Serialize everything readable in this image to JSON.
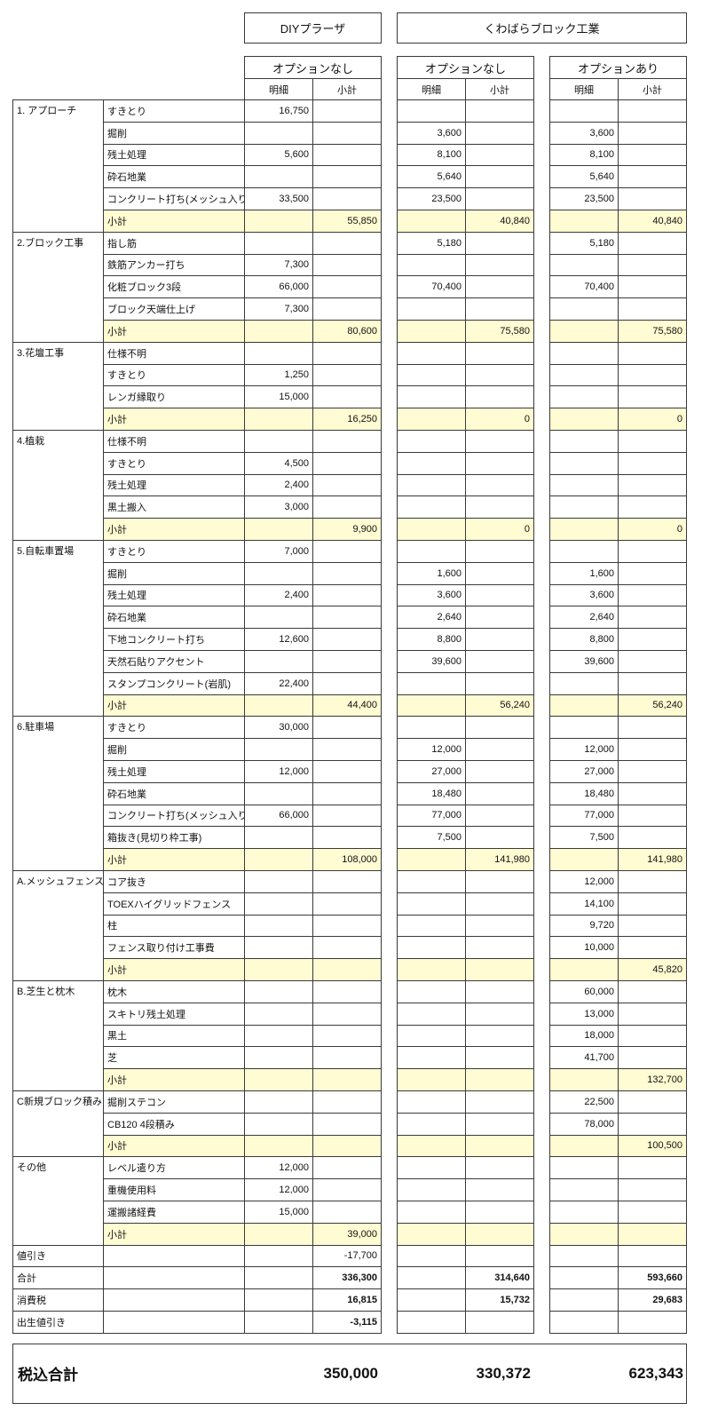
{
  "header": {
    "companies": [
      "DIYプラーザ",
      "くわばらブロック工業"
    ],
    "options": [
      "オプションなし",
      "オプションなし",
      "オプションあり"
    ],
    "col_labels": [
      "明細",
      "小計",
      "明細",
      "小計",
      "明細",
      "小計"
    ]
  },
  "subtotal_color": "#fffbd2",
  "groups": [
    {
      "category": "1. アプローチ",
      "rows": [
        {
          "item": "すきとり",
          "values": [
            "16,750",
            "",
            "",
            "",
            "",
            ""
          ]
        },
        {
          "item": "掘削",
          "values": [
            "",
            "",
            "3,600",
            "",
            "3,600",
            ""
          ]
        },
        {
          "item": "残土処理",
          "values": [
            "5,600",
            "",
            "8,100",
            "",
            "8,100",
            ""
          ]
        },
        {
          "item": "砕石地業",
          "values": [
            "",
            "",
            "5,640",
            "",
            "5,640",
            ""
          ]
        },
        {
          "item": "コンクリート打ち(メッシュ入り)",
          "values": [
            "33,500",
            "",
            "23,500",
            "",
            "23,500",
            ""
          ]
        },
        {
          "item": "小計",
          "subtotal": true,
          "values": [
            "",
            "55,850",
            "",
            "40,840",
            "",
            "40,840"
          ]
        }
      ]
    },
    {
      "category": "2.ブロック工事",
      "rows": [
        {
          "item": "指し筋",
          "values": [
            "",
            "",
            "5,180",
            "",
            "5,180",
            ""
          ]
        },
        {
          "item": "鉄筋アンカー打ち",
          "values": [
            "7,300",
            "",
            "",
            "",
            "",
            ""
          ]
        },
        {
          "item": "化粧ブロック3段",
          "values": [
            "66,000",
            "",
            "70,400",
            "",
            "70,400",
            ""
          ]
        },
        {
          "item": "ブロック天端仕上げ",
          "values": [
            "7,300",
            "",
            "",
            "",
            "",
            ""
          ]
        },
        {
          "item": "小計",
          "subtotal": true,
          "values": [
            "",
            "80,600",
            "",
            "75,580",
            "",
            "75,580"
          ]
        }
      ]
    },
    {
      "category": "3.花壇工事",
      "rows": [
        {
          "item": "仕様不明",
          "values": [
            "",
            "",
            "",
            "",
            "",
            ""
          ]
        },
        {
          "item": "すきとり",
          "values": [
            "1,250",
            "",
            "",
            "",
            "",
            ""
          ]
        },
        {
          "item": "レンガ縁取り",
          "values": [
            "15,000",
            "",
            "",
            "",
            "",
            ""
          ]
        },
        {
          "item": "小計",
          "subtotal": true,
          "values": [
            "",
            "16,250",
            "",
            "0",
            "",
            "0"
          ]
        }
      ]
    },
    {
      "category": "4.植栽",
      "rows": [
        {
          "item": "仕様不明",
          "values": [
            "",
            "",
            "",
            "",
            "",
            ""
          ]
        },
        {
          "item": "すきとり",
          "values": [
            "4,500",
            "",
            "",
            "",
            "",
            ""
          ]
        },
        {
          "item": "残土処理",
          "values": [
            "2,400",
            "",
            "",
            "",
            "",
            ""
          ]
        },
        {
          "item": "黒土搬入",
          "values": [
            "3,000",
            "",
            "",
            "",
            "",
            ""
          ]
        },
        {
          "item": "小計",
          "subtotal": true,
          "values": [
            "",
            "9,900",
            "",
            "0",
            "",
            "0"
          ]
        }
      ]
    },
    {
      "category": "5.自転車置場",
      "rows": [
        {
          "item": "すきとり",
          "values": [
            "7,000",
            "",
            "",
            "",
            "",
            ""
          ]
        },
        {
          "item": "掘削",
          "values": [
            "",
            "",
            "1,600",
            "",
            "1,600",
            ""
          ]
        },
        {
          "item": "残土処理",
          "values": [
            "2,400",
            "",
            "3,600",
            "",
            "3,600",
            ""
          ]
        },
        {
          "item": "砕石地業",
          "values": [
            "",
            "",
            "2,640",
            "",
            "2,640",
            ""
          ]
        },
        {
          "item": "下地コンクリート打ち",
          "values": [
            "12,600",
            "",
            "8,800",
            "",
            "8,800",
            ""
          ]
        },
        {
          "item": "天然石貼りアクセント",
          "values": [
            "",
            "",
            "39,600",
            "",
            "39,600",
            ""
          ]
        },
        {
          "item": "スタンプコンクリート(岩肌)",
          "values": [
            "22,400",
            "",
            "",
            "",
            "",
            ""
          ]
        },
        {
          "item": "小計",
          "subtotal": true,
          "values": [
            "",
            "44,400",
            "",
            "56,240",
            "",
            "56,240"
          ]
        }
      ]
    },
    {
      "category": "6.駐車場",
      "rows": [
        {
          "item": "すきとり",
          "values": [
            "30,000",
            "",
            "",
            "",
            "",
            ""
          ]
        },
        {
          "item": "掘削",
          "values": [
            "",
            "",
            "12,000",
            "",
            "12,000",
            ""
          ]
        },
        {
          "item": "残土処理",
          "values": [
            "12,000",
            "",
            "27,000",
            "",
            "27,000",
            ""
          ]
        },
        {
          "item": "砕石地業",
          "values": [
            "",
            "",
            "18,480",
            "",
            "18,480",
            ""
          ]
        },
        {
          "item": "コンクリート打ち(メッシュ入り)",
          "values": [
            "66,000",
            "",
            "77,000",
            "",
            "77,000",
            ""
          ]
        },
        {
          "item": "箱抜き(見切り枠工事)",
          "values": [
            "",
            "",
            "7,500",
            "",
            "7,500",
            ""
          ]
        },
        {
          "item": "小計",
          "subtotal": true,
          "values": [
            "",
            "108,000",
            "",
            "141,980",
            "",
            "141,980"
          ]
        }
      ]
    },
    {
      "category": "A.メッシュフェンス",
      "rows": [
        {
          "item": "コア抜き",
          "values": [
            "",
            "",
            "",
            "",
            "12,000",
            ""
          ]
        },
        {
          "item": "TOEXハイグリッドフェンス",
          "values": [
            "",
            "",
            "",
            "",
            "14,100",
            ""
          ]
        },
        {
          "item": "柱",
          "values": [
            "",
            "",
            "",
            "",
            "9,720",
            ""
          ]
        },
        {
          "item": "フェンス取り付け工事費",
          "values": [
            "",
            "",
            "",
            "",
            "10,000",
            ""
          ]
        },
        {
          "item": "小計",
          "subtotal": true,
          "values": [
            "",
            "",
            "",
            "",
            "",
            "45,820"
          ]
        }
      ]
    },
    {
      "category": "B.芝生と枕木",
      "rows": [
        {
          "item": "枕木",
          "values": [
            "",
            "",
            "",
            "",
            "60,000",
            ""
          ]
        },
        {
          "item": "スキトリ残土処理",
          "values": [
            "",
            "",
            "",
            "",
            "13,000",
            ""
          ]
        },
        {
          "item": "黒土",
          "values": [
            "",
            "",
            "",
            "",
            "18,000",
            ""
          ]
        },
        {
          "item": "芝",
          "values": [
            "",
            "",
            "",
            "",
            "41,700",
            ""
          ]
        },
        {
          "item": "小計",
          "subtotal": true,
          "values": [
            "",
            "",
            "",
            "",
            "",
            "132,700"
          ]
        }
      ]
    },
    {
      "category": "C新規ブロック積み",
      "rows": [
        {
          "item": "掘削ステコン",
          "values": [
            "",
            "",
            "",
            "",
            "22,500",
            ""
          ]
        },
        {
          "item": "CB120 4段積み",
          "values": [
            "",
            "",
            "",
            "",
            "78,000",
            ""
          ]
        },
        {
          "item": "小計",
          "subtotal": true,
          "values": [
            "",
            "",
            "",
            "",
            "",
            "100,500"
          ]
        }
      ]
    },
    {
      "category": "その他",
      "rows": [
        {
          "item": "レベル遣り方",
          "values": [
            "12,000",
            "",
            "",
            "",
            "",
            ""
          ]
        },
        {
          "item": "重機使用料",
          "values": [
            "12,000",
            "",
            "",
            "",
            "",
            ""
          ]
        },
        {
          "item": "運搬諸経費",
          "values": [
            "15,000",
            "",
            "",
            "",
            "",
            ""
          ]
        },
        {
          "item": "小計",
          "subtotal": true,
          "values": [
            "",
            "39,000",
            "",
            "",
            "",
            ""
          ]
        }
      ]
    }
  ],
  "footer_rows": [
    {
      "label": "値引き",
      "bold": false,
      "values": [
        "",
        "-17,700",
        "",
        "",
        "",
        ""
      ]
    },
    {
      "label": "合計",
      "bold": true,
      "values": [
        "",
        "336,300",
        "",
        "314,640",
        "",
        "593,660"
      ]
    },
    {
      "label": "消費税",
      "bold": true,
      "values": [
        "",
        "16,815",
        "",
        "15,732",
        "",
        "29,683"
      ]
    },
    {
      "label": "出生値引き",
      "bold": true,
      "values": [
        "",
        "-3,115",
        "",
        "",
        "",
        ""
      ]
    }
  ],
  "grand_total": {
    "label": "税込合計",
    "values": [
      "350,000",
      "330,372",
      "623,343"
    ]
  }
}
